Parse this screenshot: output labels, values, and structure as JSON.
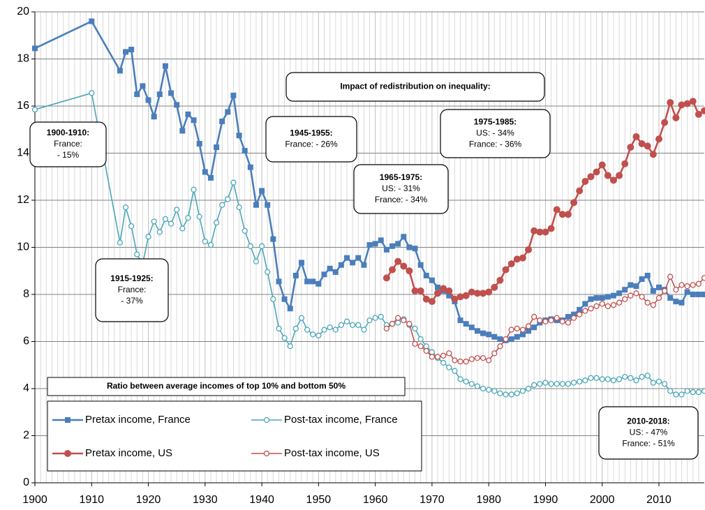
{
  "chart_data": {
    "type": "line",
    "title": "Ratio between average incomes of top 10% and bottom 50%",
    "x": [
      1900,
      1910,
      1915,
      1916,
      1917,
      1918,
      1919,
      1920,
      1921,
      1922,
      1923,
      1924,
      1925,
      1926,
      1927,
      1928,
      1929,
      1930,
      1931,
      1932,
      1933,
      1934,
      1935,
      1936,
      1937,
      1938,
      1939,
      1940,
      1941,
      1942,
      1943,
      1944,
      1945,
      1946,
      1947,
      1948,
      1949,
      1950,
      1951,
      1952,
      1953,
      1954,
      1955,
      1956,
      1957,
      1958,
      1959,
      1960,
      1961,
      1962,
      1963,
      1964,
      1965,
      1966,
      1967,
      1968,
      1969,
      1970,
      1971,
      1972,
      1973,
      1974,
      1975,
      1976,
      1977,
      1978,
      1979,
      1980,
      1981,
      1982,
      1983,
      1984,
      1985,
      1986,
      1987,
      1988,
      1989,
      1990,
      1991,
      1992,
      1993,
      1994,
      1995,
      1996,
      1997,
      1998,
      1999,
      2000,
      2001,
      2002,
      2003,
      2004,
      2005,
      2006,
      2007,
      2008,
      2009,
      2010,
      2011,
      2012,
      2013,
      2014,
      2015,
      2016,
      2017,
      2018
    ],
    "series": [
      {
        "name": "Pretax income, France",
        "color": "#4a7ebb",
        "marker": "square",
        "filled": true,
        "values": [
          18.45,
          19.6,
          17.5,
          18.3,
          18.4,
          16.5,
          16.85,
          16.25,
          15.55,
          16.5,
          17.7,
          16.55,
          16.05,
          14.95,
          15.65,
          15.4,
          14.4,
          13.2,
          12.95,
          14.25,
          15.35,
          15.75,
          16.45,
          14.75,
          14.1,
          13.4,
          11.8,
          12.4,
          11.8,
          10.35,
          8.55,
          7.8,
          7.4,
          8.8,
          9.35,
          8.55,
          8.55,
          8.45,
          8.85,
          9.1,
          8.95,
          9.25,
          9.55,
          9.35,
          9.55,
          9.25,
          10.1,
          10.15,
          10.3,
          9.9,
          10.05,
          10.15,
          10.45,
          10.0,
          9.95,
          9.25,
          8.8,
          8.6,
          8.3,
          8.15,
          7.95,
          7.7,
          6.9,
          6.75,
          6.6,
          6.45,
          6.35,
          6.3,
          6.2,
          6.1,
          6.05,
          6.1,
          6.2,
          6.3,
          6.45,
          6.6,
          6.8,
          6.9,
          6.95,
          6.9,
          6.9,
          7.05,
          7.15,
          7.35,
          7.6,
          7.8,
          7.85,
          7.85,
          7.9,
          7.95,
          8.05,
          8.2,
          8.4,
          8.35,
          8.65,
          8.8,
          8.15,
          8.3,
          8.2,
          7.85,
          7.7,
          7.65,
          8.1,
          8.0,
          8.0,
          8.0
        ]
      },
      {
        "name": "Post-tax income, France",
        "color": "#4aa6b8",
        "marker": "circle",
        "filled": false,
        "values": [
          15.85,
          16.55,
          10.2,
          11.7,
          10.9,
          9.7,
          9.3,
          10.45,
          11.1,
          10.65,
          11.2,
          11.0,
          11.6,
          10.8,
          11.25,
          12.45,
          11.3,
          10.25,
          10.1,
          11.05,
          11.8,
          12.05,
          12.75,
          11.7,
          10.7,
          10.05,
          9.4,
          10.05,
          8.95,
          7.8,
          6.55,
          6.15,
          5.8,
          6.55,
          7.0,
          6.5,
          6.3,
          6.25,
          6.5,
          6.6,
          6.5,
          6.7,
          6.85,
          6.7,
          6.7,
          6.5,
          6.9,
          7.0,
          7.05,
          6.7,
          6.75,
          6.8,
          6.95,
          6.7,
          6.55,
          6.1,
          5.8,
          5.55,
          5.3,
          5.1,
          4.9,
          4.75,
          4.4,
          4.3,
          4.2,
          4.1,
          4.0,
          3.95,
          3.9,
          3.8,
          3.75,
          3.75,
          3.8,
          3.9,
          4.0,
          4.15,
          4.2,
          4.25,
          4.2,
          4.2,
          4.2,
          4.2,
          4.25,
          4.3,
          4.35,
          4.45,
          4.45,
          4.4,
          4.4,
          4.35,
          4.4,
          4.5,
          4.45,
          4.35,
          4.5,
          4.55,
          4.25,
          4.3,
          4.2,
          3.9,
          3.75,
          3.75,
          3.9,
          3.85,
          3.85,
          3.9
        ]
      },
      {
        "name": "Pretax income, US",
        "color": "#c0504d",
        "marker": "circle",
        "filled": true,
        "values": [
          null,
          null,
          null,
          null,
          null,
          null,
          null,
          null,
          null,
          null,
          null,
          null,
          null,
          null,
          null,
          null,
          null,
          null,
          null,
          null,
          null,
          null,
          null,
          null,
          null,
          null,
          null,
          null,
          null,
          null,
          null,
          null,
          null,
          null,
          null,
          null,
          null,
          null,
          null,
          null,
          null,
          null,
          null,
          null,
          null,
          null,
          null,
          null,
          null,
          8.7,
          9.05,
          9.4,
          9.2,
          9.0,
          8.15,
          8.15,
          7.8,
          7.7,
          8.05,
          8.25,
          8.15,
          7.8,
          7.9,
          7.95,
          8.1,
          8.05,
          8.05,
          8.1,
          8.3,
          8.6,
          9.05,
          9.3,
          9.5,
          9.55,
          9.9,
          10.7,
          10.65,
          10.65,
          10.8,
          11.6,
          11.4,
          11.4,
          11.9,
          12.4,
          12.8,
          13.0,
          13.2,
          13.5,
          13.05,
          12.85,
          13.05,
          13.55,
          14.25,
          14.7,
          14.4,
          14.3,
          13.95,
          14.6,
          15.3,
          16.15,
          15.5,
          16.05,
          16.1,
          16.2,
          15.65,
          15.8
        ]
      },
      {
        "name": "Post-tax income, US",
        "color": "#c0504d",
        "marker": "circle",
        "filled": false,
        "values": [
          null,
          null,
          null,
          null,
          null,
          null,
          null,
          null,
          null,
          null,
          null,
          null,
          null,
          null,
          null,
          null,
          null,
          null,
          null,
          null,
          null,
          null,
          null,
          null,
          null,
          null,
          null,
          null,
          null,
          null,
          null,
          null,
          null,
          null,
          null,
          null,
          null,
          null,
          null,
          null,
          null,
          null,
          null,
          null,
          null,
          null,
          null,
          null,
          null,
          6.55,
          6.75,
          7.0,
          6.9,
          6.75,
          5.9,
          5.8,
          5.6,
          5.35,
          5.35,
          5.4,
          5.5,
          5.2,
          5.15,
          5.15,
          5.25,
          5.3,
          5.3,
          5.2,
          5.5,
          5.8,
          6.1,
          6.5,
          6.55,
          6.5,
          6.65,
          7.05,
          6.9,
          6.85,
          6.9,
          7.0,
          6.85,
          6.8,
          7.0,
          7.15,
          7.3,
          7.4,
          7.5,
          7.6,
          7.5,
          7.55,
          7.65,
          7.8,
          7.95,
          8.05,
          7.9,
          7.65,
          7.55,
          7.85,
          8.15,
          8.75,
          8.2,
          8.4,
          8.35,
          8.4,
          8.45,
          8.7
        ]
      }
    ],
    "xlim": [
      1900,
      2018
    ],
    "xticks": [
      1900,
      1910,
      1920,
      1930,
      1940,
      1950,
      1960,
      1970,
      1980,
      1990,
      2000,
      2010
    ],
    "xminorticks": [
      1901,
      1902,
      1903,
      1904,
      1905,
      1906,
      1907,
      1908,
      1909,
      1911,
      1912,
      1913,
      1914,
      1915,
      1916,
      1917,
      1918,
      1919,
      1921,
      1922,
      1923,
      1924,
      1925,
      1926,
      1927,
      1928,
      1929,
      1931,
      1932,
      1933,
      1934,
      1935,
      1936,
      1937,
      1938,
      1939,
      1941,
      1942,
      1943,
      1944,
      1945,
      1946,
      1947,
      1948,
      1949,
      1951,
      1952,
      1953,
      1954,
      1955,
      1956,
      1957,
      1958,
      1959,
      1961,
      1962,
      1963,
      1964,
      1965,
      1966,
      1967,
      1968,
      1969,
      1971,
      1972,
      1973,
      1974,
      1975,
      1976,
      1977,
      1978,
      1979,
      1981,
      1982,
      1983,
      1984,
      1985,
      1986,
      1987,
      1988,
      1989,
      1991,
      1992,
      1993,
      1994,
      1995,
      1996,
      1997,
      1998,
      1999,
      2001,
      2002,
      2003,
      2004,
      2005,
      2006,
      2007,
      2008,
      2009,
      2011,
      2012,
      2013,
      2014,
      2015,
      2016,
      2017
    ],
    "ylim": [
      0,
      20
    ],
    "yticks": [
      0,
      2,
      4,
      6,
      8,
      10,
      12,
      14,
      16,
      18,
      20
    ],
    "grid": true,
    "annotations": [
      {
        "title": "Impact of redistribution on inequality:"
      },
      {
        "title": "1900-1910:",
        "lines": [
          "France:",
          "- 15%"
        ]
      },
      {
        "title": "1915-1925:",
        "lines": [
          "France:",
          "- 37%"
        ]
      },
      {
        "title": "1945-1955:",
        "lines": [
          "France: - 26%"
        ]
      },
      {
        "title": "1965-1975:",
        "lines": [
          "US: - 31%",
          "France: - 34%"
        ]
      },
      {
        "title": "1975-1985:",
        "lines": [
          "US: - 34%",
          "France: - 36%"
        ]
      },
      {
        "title": "2010-2018:",
        "lines": [
          "US: - 47%",
          "France: - 51%"
        ]
      }
    ]
  }
}
